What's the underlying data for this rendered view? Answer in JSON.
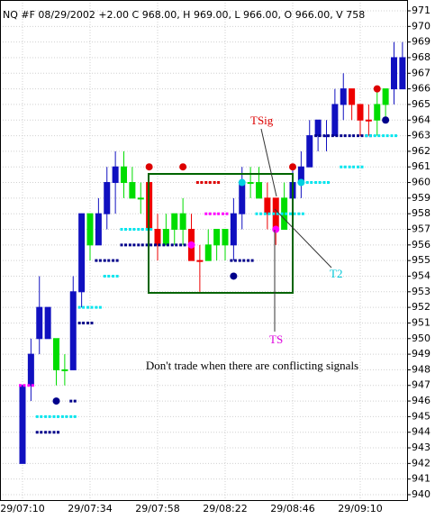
{
  "chart_data": {
    "type": "candlestick",
    "title": "NQ #F 08/29/2002  +2.00 C 968.00, H 969.00, L 966.00, O 966.00, V    758",
    "annotations": [
      "TSig",
      "T2",
      "TS",
      "Don't trade when there are conflicting signals"
    ],
    "categories": [
      "29/07:10",
      null,
      null,
      null,
      null,
      null,
      null,
      null,
      "29/07:34",
      null,
      null,
      null,
      null,
      null,
      null,
      null,
      "29/07:58",
      null,
      null,
      null,
      null,
      null,
      null,
      null,
      "29/08:22",
      null,
      null,
      null,
      null,
      null,
      null,
      null,
      "29/08:46",
      null,
      null,
      null,
      null,
      null,
      null,
      null,
      "29/09:10",
      null,
      null,
      null,
      null,
      null
    ],
    "open": [
      942,
      947,
      950,
      952,
      950,
      948,
      948,
      953,
      958,
      956,
      958,
      960,
      961,
      960,
      959,
      960,
      957,
      956,
      957,
      958,
      957,
      955,
      955,
      956,
      957,
      956,
      958,
      960,
      960,
      959,
      959,
      957,
      959,
      960,
      961,
      963,
      963,
      963,
      965,
      966,
      965,
      964,
      964,
      965,
      966,
      966
    ],
    "high": [
      947,
      950,
      954,
      952,
      950,
      949,
      954,
      958,
      958,
      959,
      961,
      962,
      962,
      961,
      960,
      960,
      958,
      958,
      958,
      959,
      958,
      956,
      957,
      957,
      957,
      959,
      961,
      961,
      961,
      960,
      959,
      960,
      961,
      962,
      964,
      964,
      964,
      966,
      967,
      966,
      965,
      965,
      966,
      966,
      969,
      969
    ],
    "low": [
      942,
      946,
      949,
      950,
      947,
      947,
      948,
      952,
      955,
      956,
      957,
      958,
      959,
      959,
      958,
      956,
      955,
      956,
      956,
      956,
      955,
      953,
      955,
      955,
      955,
      955,
      957,
      959,
      959,
      957,
      956,
      957,
      958,
      959,
      961,
      962,
      962,
      963,
      964,
      964,
      963,
      963,
      963,
      964,
      965,
      966
    ],
    "close": [
      947,
      949,
      952,
      950,
      948,
      948,
      953,
      958,
      956,
      958,
      960,
      961,
      960,
      959,
      959,
      957,
      956,
      957,
      958,
      957,
      955,
      955,
      956,
      957,
      956,
      958,
      960,
      960,
      959,
      958,
      957,
      959,
      960,
      961,
      963,
      964,
      963,
      965,
      966,
      965,
      964,
      964,
      965,
      966,
      968,
      968
    ],
    "candle_colors": [
      "#1010c0",
      "#1010c0",
      "#1010c0",
      "#1010c0",
      "#00dd00",
      "#00dd00",
      "#1010c0",
      "#1010c0",
      "#00dd00",
      "#1010c0",
      "#1010c0",
      "#1010c0",
      "#00dd00",
      "#00dd00",
      "#00dd00",
      "#ee0000",
      "#ee0000",
      "#00dd00",
      "#00dd00",
      "#00dd00",
      "#ee0000",
      "#ee0000",
      "#00dd00",
      "#00dd00",
      "#00dd00",
      "#1010c0",
      "#1010c0",
      "#00dd00",
      "#00dd00",
      "#ee0000",
      "#ee0000",
      "#00dd00",
      "#1010c0",
      "#1010c0",
      "#1010c0",
      "#1010c0",
      "#1010c0",
      "#1010c0",
      "#1010c0",
      "#ee0000",
      "#ee0000",
      "#ee0000",
      "#00dd00",
      "#00dd00",
      "#1010c0",
      "#1010c0"
    ],
    "overlays": [
      {
        "marker": "dash",
        "color": "#00008b",
        "values": [
          null,
          null,
          944,
          944,
          944,
          null,
          946,
          951,
          951,
          955,
          955,
          955,
          956,
          956,
          956,
          956,
          956,
          956,
          956,
          956,
          null,
          null,
          null,
          null,
          null,
          955,
          955,
          955,
          null,
          null,
          null,
          null,
          null,
          null,
          null,
          963,
          963,
          963,
          963,
          963,
          963,
          963,
          null,
          null,
          null,
          null
        ]
      },
      {
        "marker": "dash",
        "color": "#dd0000",
        "values": [
          null,
          null,
          null,
          null,
          null,
          null,
          null,
          null,
          null,
          null,
          null,
          null,
          null,
          null,
          null,
          null,
          null,
          null,
          null,
          null,
          null,
          960,
          960,
          960,
          null,
          null,
          null,
          null,
          null,
          null,
          null,
          null,
          null,
          null,
          null,
          null,
          null,
          null,
          null,
          null,
          null,
          null,
          null,
          null,
          null,
          null
        ]
      },
      {
        "marker": "dash",
        "color": "#00e5ee",
        "values": [
          null,
          null,
          945,
          945,
          945,
          945,
          945,
          952,
          952,
          952,
          954,
          954,
          957,
          957,
          957,
          957,
          null,
          null,
          null,
          null,
          null,
          null,
          null,
          null,
          null,
          null,
          null,
          null,
          958,
          958,
          958,
          958,
          958,
          958,
          960,
          960,
          960,
          null,
          961,
          961,
          961,
          963,
          963,
          963,
          963,
          null
        ]
      },
      {
        "marker": "dash",
        "color": "#ff00ff",
        "values": [
          947,
          947,
          null,
          null,
          null,
          null,
          null,
          null,
          null,
          null,
          null,
          null,
          null,
          null,
          null,
          null,
          null,
          null,
          null,
          null,
          null,
          null,
          958,
          958,
          958,
          null,
          null,
          null,
          null,
          null,
          null,
          null,
          null,
          null,
          null,
          null,
          null,
          null,
          null,
          null,
          null,
          null,
          null,
          null,
          null,
          null
        ]
      },
      {
        "marker": "dot",
        "color": "#dd0000",
        "values": [
          null,
          null,
          null,
          null,
          null,
          null,
          null,
          null,
          null,
          null,
          null,
          null,
          null,
          null,
          null,
          961,
          null,
          null,
          null,
          961,
          null,
          null,
          null,
          null,
          null,
          null,
          null,
          null,
          null,
          null,
          null,
          null,
          961,
          null,
          null,
          null,
          null,
          null,
          null,
          null,
          null,
          null,
          966,
          null,
          null,
          null
        ]
      },
      {
        "marker": "dot",
        "color": "#00008b",
        "values": [
          null,
          null,
          null,
          null,
          946,
          null,
          null,
          null,
          null,
          null,
          null,
          null,
          null,
          null,
          null,
          null,
          null,
          null,
          null,
          null,
          null,
          null,
          null,
          null,
          null,
          954,
          null,
          null,
          null,
          null,
          null,
          null,
          null,
          null,
          null,
          null,
          null,
          null,
          null,
          null,
          null,
          null,
          null,
          964,
          null,
          null
        ]
      },
      {
        "marker": "dot",
        "color": "#00d0e0",
        "values": [
          null,
          null,
          null,
          null,
          null,
          null,
          null,
          null,
          null,
          null,
          null,
          null,
          null,
          null,
          null,
          null,
          null,
          null,
          null,
          null,
          null,
          null,
          null,
          null,
          null,
          null,
          960,
          null,
          null,
          null,
          null,
          null,
          null,
          960,
          null,
          null,
          null,
          null,
          null,
          null,
          null,
          null,
          null,
          null,
          null,
          null
        ]
      },
      {
        "marker": "dot",
        "color": "#ff00ff",
        "values": [
          null,
          null,
          null,
          null,
          null,
          null,
          null,
          null,
          null,
          null,
          null,
          null,
          null,
          null,
          null,
          null,
          null,
          null,
          null,
          null,
          956,
          null,
          null,
          null,
          null,
          null,
          null,
          null,
          null,
          null,
          957,
          null,
          null,
          null,
          null,
          null,
          null,
          null,
          null,
          null,
          null,
          null,
          null,
          null,
          null,
          null
        ]
      }
    ],
    "ylim": [
      940,
      971
    ],
    "yticks": [
      940,
      941,
      942,
      943,
      944,
      945,
      946,
      947,
      948,
      949,
      950,
      951,
      952,
      953,
      954,
      955,
      956,
      957,
      958,
      959,
      960,
      961,
      962,
      963,
      964,
      965,
      966,
      967,
      968,
      969,
      970,
      971
    ],
    "grid": true
  }
}
